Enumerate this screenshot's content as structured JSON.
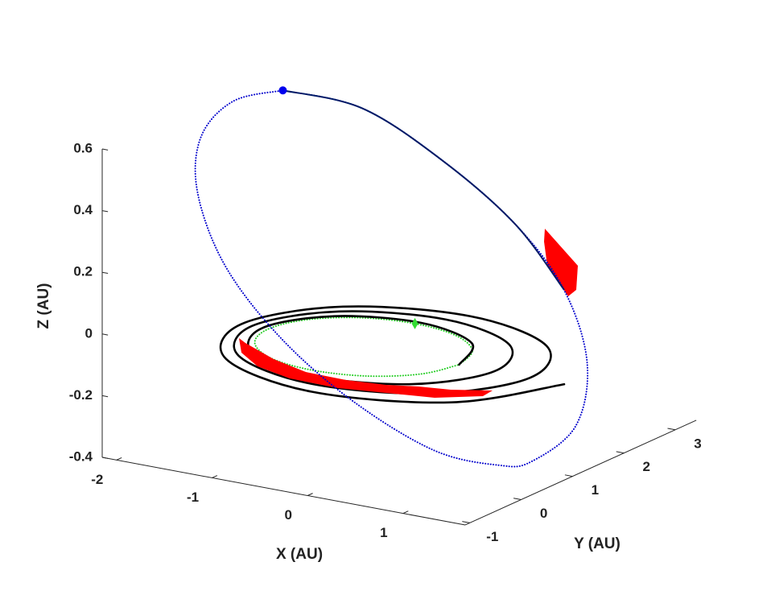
{
  "chart_data": {
    "type": "line3d",
    "xlabel": "X (AU)",
    "ylabel": "Y (AU)",
    "zlabel": "Z (AU)",
    "xlim": [
      -2.15,
      1.65
    ],
    "ylim": [
      -1.09,
      3.41
    ],
    "zlim": [
      -0.4,
      0.6
    ],
    "xticks": [
      -2,
      -1,
      0,
      1
    ],
    "yticks": [
      -1,
      0,
      1,
      2,
      3
    ],
    "zticks": [
      -0.4,
      -0.2,
      0,
      0.2,
      0.4,
      0.6
    ],
    "series": [
      {
        "color": "#22cc22",
        "line": "dotted",
        "marker": "none",
        "x": [
          1,
          0.87,
          0.5,
          0,
          -0.5,
          -0.87,
          -1,
          -0.87,
          -0.5,
          0,
          0.5,
          0.87,
          1
        ],
        "y": [
          0,
          0.5,
          0.87,
          1,
          0.87,
          0.5,
          0,
          -0.5,
          -0.87,
          -1,
          -0.87,
          -0.5,
          0
        ],
        "z": [
          0,
          0,
          0,
          0,
          0,
          0,
          0,
          0,
          0,
          0,
          0,
          0,
          0
        ]
      },
      {
        "color": "#000000",
        "line": "solid",
        "marker": "none",
        "x": [
          1.0,
          0.74,
          0.03,
          -0.72,
          -1.06,
          -0.73,
          0.1,
          0.97,
          1.37,
          1.04,
          0.16,
          -0.76,
          -1.17,
          -0.78,
          0.22,
          1.27,
          1.74,
          1.34,
          0.29,
          -0.81,
          -1.28,
          -0.82,
          0.35,
          1.56,
          2.1
        ],
        "y": [
          0,
          0.73,
          1.06,
          0.77,
          0,
          -0.81,
          -1.18,
          -0.86,
          0,
          0.9,
          1.3,
          0.94,
          0,
          -0.98,
          -1.42,
          -1.03,
          0,
          1.07,
          1.54,
          1.11,
          0,
          -1.15,
          -1.66,
          -1.19,
          0
        ],
        "z": [
          0,
          0,
          0,
          0,
          0,
          0,
          0,
          0,
          0,
          0,
          0,
          0,
          0,
          0,
          0,
          0,
          0,
          0,
          0,
          0,
          0,
          0,
          0,
          0,
          0
        ]
      },
      {
        "color": "#0000cc",
        "line": "dotted",
        "marker": "none",
        "x": [
          -1.92,
          -1.09,
          -0.14,
          0.78,
          1.45,
          1.91,
          2.06,
          1.81,
          1.58,
          1.01,
          0.22,
          -0.59,
          -1.34,
          -1.9,
          -1.97,
          -2.01,
          -1.92
        ],
        "y": [
          2.0,
          2.0,
          1.8,
          1.5,
          1.2,
          0.8,
          0.3,
          -0.1,
          -0.3,
          -0.5,
          -0.6,
          -0.5,
          -0.2,
          0.3,
          0.5,
          1.2,
          2.0
        ],
        "z": [
          0.57,
          0.56,
          0.46,
          0.33,
          0.18,
          0.0,
          -0.16,
          -0.26,
          -0.27,
          -0.24,
          -0.12,
          0.03,
          0.2,
          0.37,
          0.53,
          0.59,
          0.57
        ]
      },
      {
        "color": "#001a66",
        "line": "solid",
        "marker": "none",
        "x": [
          -1.92,
          -1.09,
          -0.14,
          0.78,
          1.45
        ],
        "y": [
          2.0,
          2.0,
          1.8,
          1.5,
          1.2
        ],
        "z": [
          0.57,
          0.56,
          0.46,
          0.33,
          0.18
        ]
      },
      {
        "color": "#0000ee",
        "line": "none",
        "marker": "circle",
        "x": [
          -1.92
        ],
        "y": [
          2.0
        ],
        "z": [
          0.57
        ]
      },
      {
        "color": "#33dd33",
        "line": "none",
        "marker": "diamond",
        "x": [
          0
        ],
        "y": [
          1
        ],
        "z": [
          0
        ]
      }
    ]
  }
}
